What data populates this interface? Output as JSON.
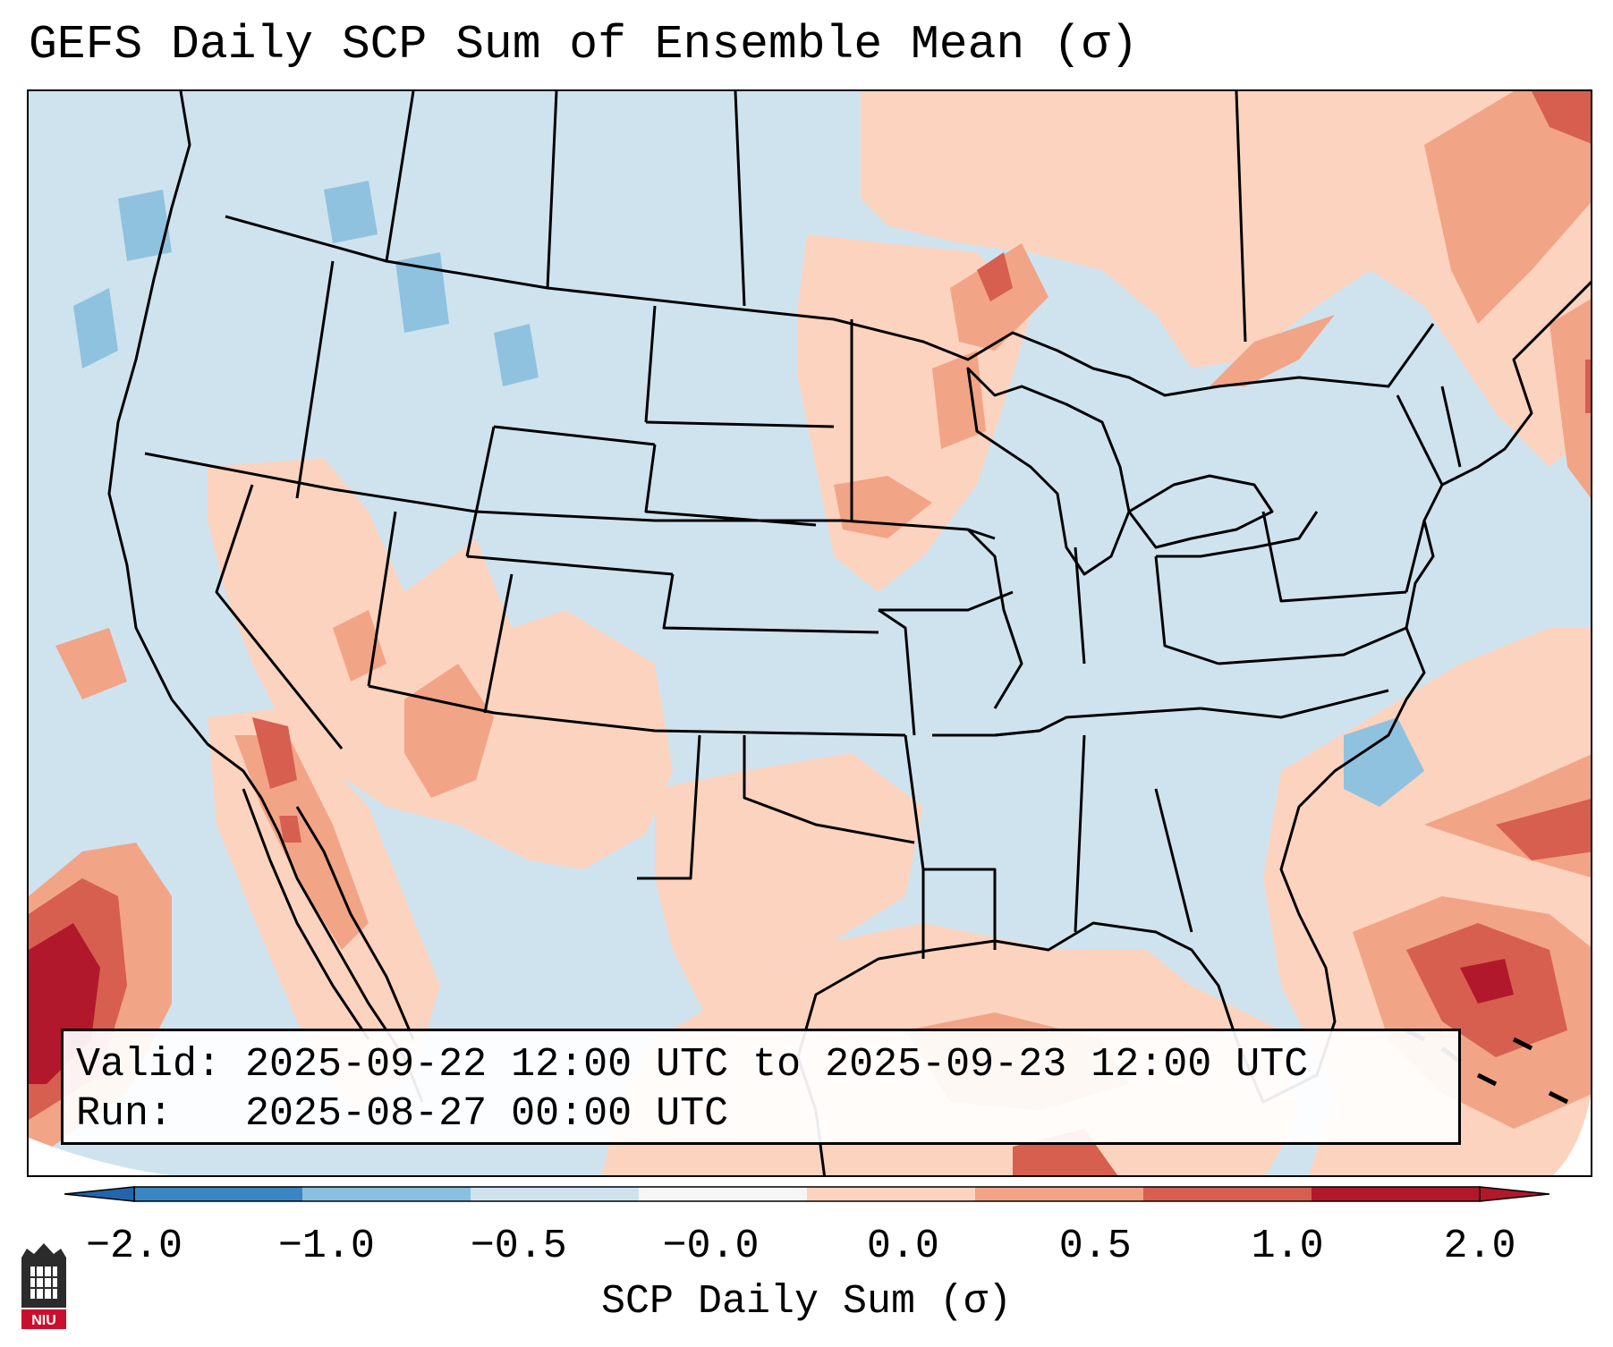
{
  "title": "GEFS Daily SCP Sum of Ensemble Mean (σ)",
  "info": {
    "valid_label": "Valid:",
    "valid_value": "2025-09-22 12:00 UTC to 2025-09-23 12:00 UTC",
    "run_label": "Run:",
    "run_value": "2025-08-27 00:00 UTC"
  },
  "colorbar": {
    "label": "SCP Daily Sum (σ)",
    "ticks": [
      "−2.0",
      "−1.0",
      "−0.5",
      "−0.0",
      "0.0",
      "0.5",
      "1.0",
      "2.0"
    ],
    "bin_colors": [
      "#3a86c2",
      "#89bfe0",
      "#cfe3ef",
      "#f6f6f6",
      "#fcd3bf",
      "#f2a486",
      "#d75f4f",
      "#b2182b"
    ],
    "under_color": "#2166ac",
    "over_color": "#b2182b"
  },
  "map_colors": {
    "ocean_bg": "#cfe3ef",
    "light_blue": "#cfe3ef",
    "mid_blue": "#8fc2df",
    "light_red": "#fcd3bf",
    "mid_red": "#f2a486",
    "red": "#d75f4f",
    "dark_red": "#b2182b",
    "border": "#000000"
  },
  "logo": {
    "text": "NIU"
  }
}
